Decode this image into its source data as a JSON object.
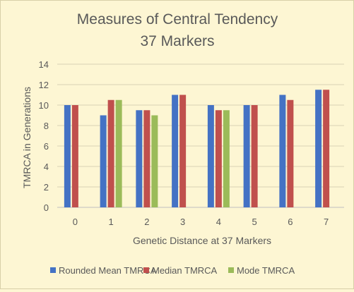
{
  "chart_data": {
    "type": "bar",
    "title": "Measures of Central Tendency",
    "subtitle": "37 Markers",
    "xlabel": "Genetic Distance at 37 Markers",
    "ylabel": "TMRCA in Generations",
    "ylim": [
      0,
      14
    ],
    "yticks": [
      0,
      2,
      4,
      6,
      8,
      10,
      12,
      14
    ],
    "categories": [
      "0",
      "1",
      "2",
      "3",
      "4",
      "5",
      "6",
      "7"
    ],
    "grid": true,
    "legend": "bottom",
    "series": [
      {
        "name": "Rounded Mean TMRCA",
        "color": "#4472c4",
        "values": [
          10,
          9,
          9.5,
          11,
          10,
          10,
          11,
          11.5
        ]
      },
      {
        "name": "Median TMRCA",
        "color": "#c0504d",
        "values": [
          10,
          10.5,
          9.5,
          11,
          9.5,
          10,
          10.5,
          11.5
        ]
      },
      {
        "name": "Mode TMRCA",
        "color": "#9bbb59",
        "values": [
          null,
          10.5,
          9,
          null,
          9.5,
          null,
          null,
          null
        ]
      }
    ]
  }
}
